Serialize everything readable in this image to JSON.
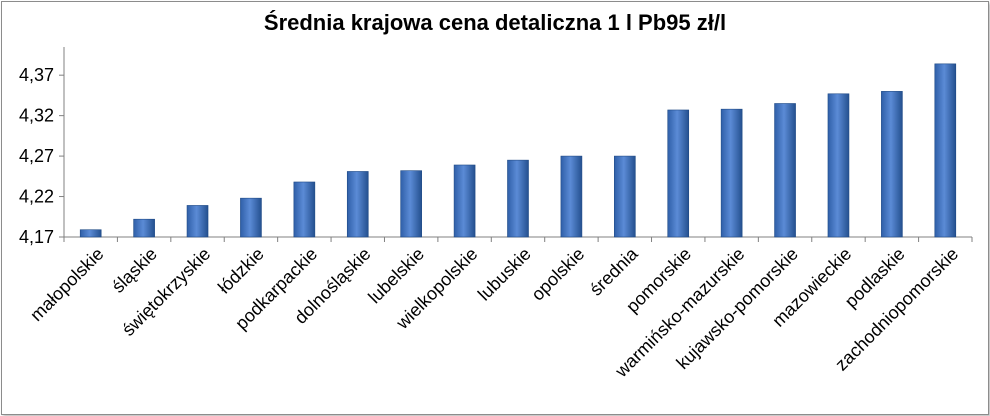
{
  "chart_data": {
    "type": "bar",
    "title": "Średnia krajowa cena detaliczna 1 l Pb95 zł/l",
    "xlabel": "",
    "ylabel": "",
    "ylim": [
      4.17,
      4.39
    ],
    "yticks": [
      "4,17",
      "4,22",
      "4,27",
      "4,32",
      "4,37"
    ],
    "ytick_values": [
      4.17,
      4.22,
      4.27,
      4.32,
      4.37
    ],
    "grid": false,
    "legend": "none",
    "bar_color": "#4472C4",
    "categories": [
      "małopolskie",
      "śląskie",
      "świętokrzyskie",
      "łódzkie",
      "podkarpackie",
      "dolnośląskie",
      "lubelskie",
      "wielkopolskie",
      "lubuskie",
      "opolskie",
      "średnia",
      "pomorskie",
      "warmińsko-mazurskie",
      "kujawsko-pomorskie",
      "mazowieckie",
      "podlaskie",
      "zachodniopomorskie"
    ],
    "values": [
      4.179,
      4.192,
      4.209,
      4.218,
      4.238,
      4.251,
      4.252,
      4.259,
      4.265,
      4.27,
      4.27,
      4.327,
      4.328,
      4.335,
      4.347,
      4.35,
      4.384
    ]
  }
}
